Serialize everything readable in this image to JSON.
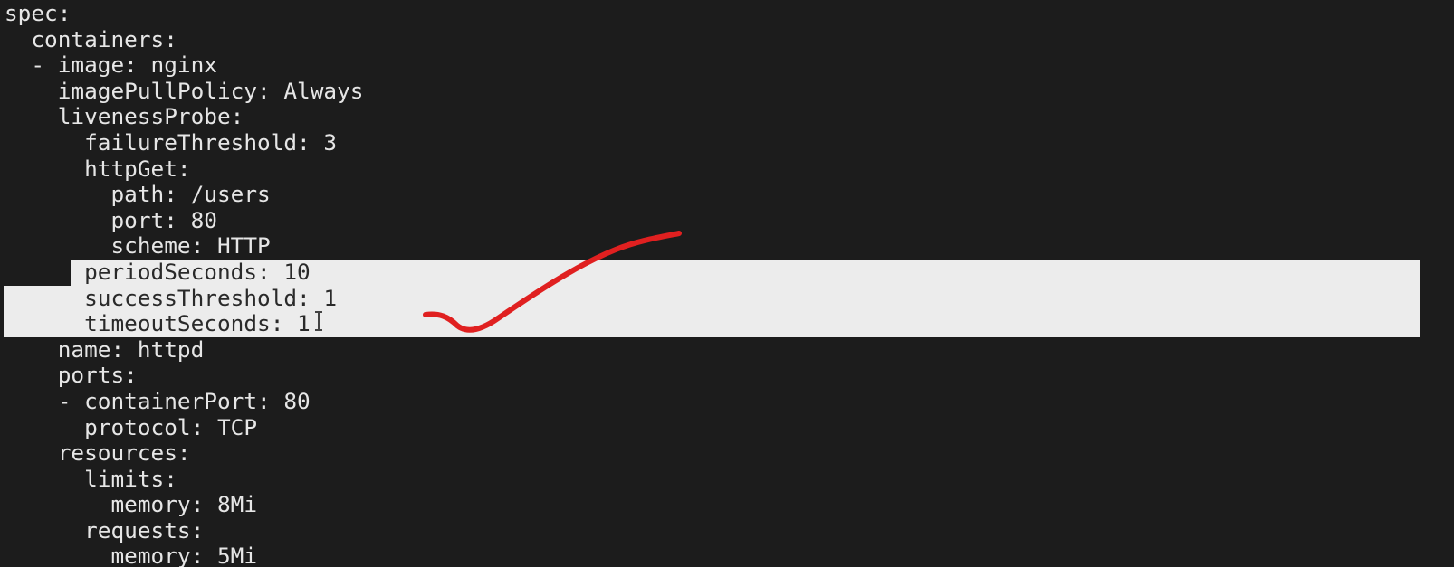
{
  "lines": [
    "spec:",
    "  containers:",
    "  - image: nginx",
    "    imagePullPolicy: Always",
    "    livenessProbe:",
    "      failureThreshold: 3",
    "      httpGet:",
    "        path: /users",
    "        port: 80",
    "        scheme: HTTP",
    "      periodSeconds: 10",
    "      successThreshold: 1",
    "      timeoutSeconds: 1",
    "    name: httpd",
    "    ports:",
    "    - containerPort: 80",
    "      protocol: TCP",
    "    resources:",
    "      limits:",
    "        memory: 8Mi",
    "      requests:",
    "        memory: 5Mi"
  ]
}
